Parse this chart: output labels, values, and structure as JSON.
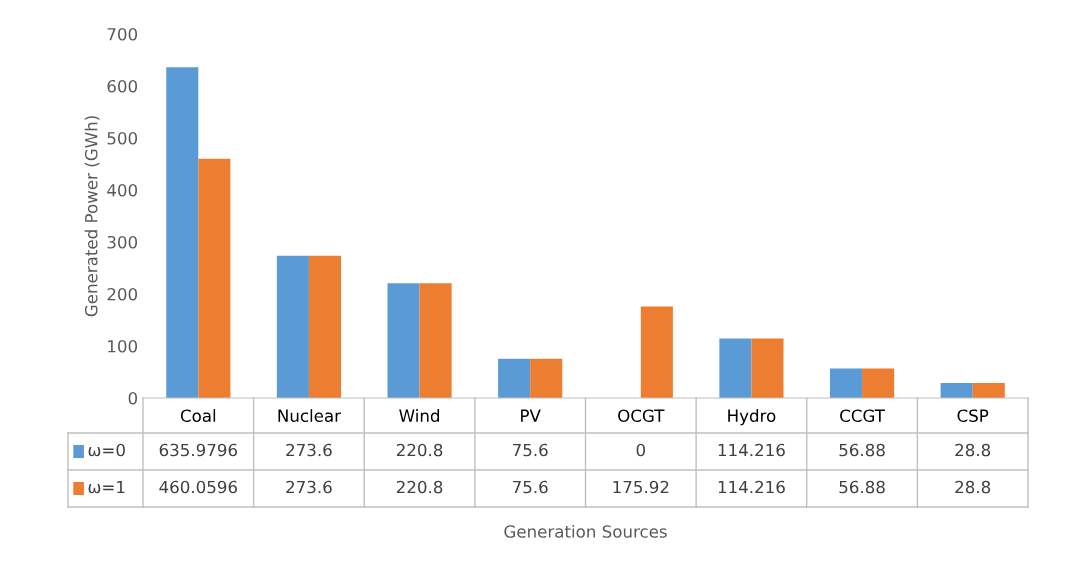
{
  "chart_data": {
    "type": "bar",
    "annotations": [
      "Generation Sources"
    ],
    "ylabel": "Generated Power (GWh)",
    "categories": [
      "Coal",
      "Nuclear",
      "Wind",
      "PV",
      "OCGT",
      "Hydro",
      "CCGT",
      "CSP"
    ],
    "series": [
      {
        "name": "ω=0",
        "color": "#5b9bd5",
        "values": [
          635.9796,
          273.6,
          220.8,
          75.6,
          0,
          114.216,
          56.88,
          28.8
        ]
      },
      {
        "name": "ω=1",
        "color": "#ed7d31",
        "values": [
          460.0596,
          273.6,
          220.8,
          75.6,
          175.92,
          114.216,
          56.88,
          28.8
        ]
      }
    ],
    "ylim": [
      0,
      700
    ],
    "yticks": [
      0,
      100,
      200,
      300,
      400,
      500,
      600,
      700
    ],
    "data_labels": true,
    "grid": false,
    "legend": "bottom left"
  }
}
